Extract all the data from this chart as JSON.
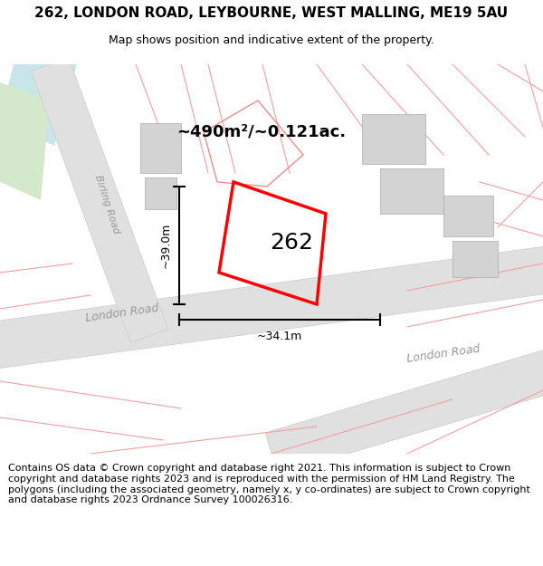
{
  "title": "262, LONDON ROAD, LEYBOURNE, WEST MALLING, ME19 5AU",
  "subtitle": "Map shows position and indicative extent of the property.",
  "footer": "Contains OS data © Crown copyright and database right 2021. This information is subject to Crown copyright and database rights 2023 and is reproduced with the permission of HM Land Registry. The polygons (including the associated geometry, namely x, y co-ordinates) are subject to Crown copyright and database rights 2023 Ordnance Survey 100026316.",
  "area_label": "~490m²/~0.121ac.",
  "plot_number": "262",
  "width_label": "~34.1m",
  "height_label": "~39.0m",
  "map_bg": "#ffffff",
  "plot_color": "#ff0000",
  "building_color": "#d3d3d3",
  "road_fill": "#e0e0e0",
  "water_color": "#c8e6ea",
  "green_color": "#d4e8cc",
  "road_label_color": "#999999",
  "pink_line_color": "#f0a0a0",
  "title_fontsize": 11,
  "subtitle_fontsize": 9,
  "footer_fontsize": 8
}
